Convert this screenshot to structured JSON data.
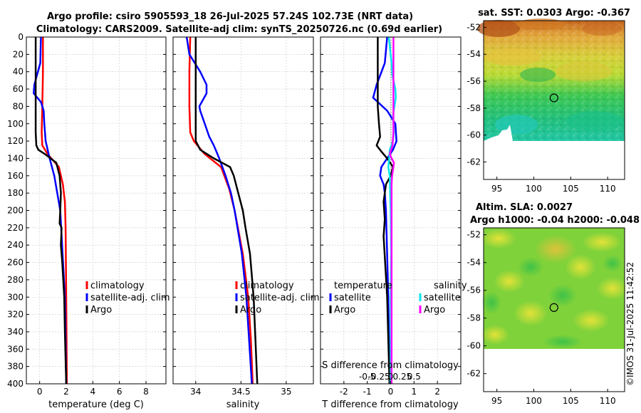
{
  "title_line1": "Argo profile: csiro 5905593_18 26-Jul-2025 57.24S 102.73E (NRT data)",
  "title_line2": "Climatology: CARS2009. Satellite-adj clim: synTS_20250726.nc (0.69d earlier)",
  "watermark": "©IMOS 31-Jul-2025 11:42:52",
  "colors": {
    "climatology": "#ff0000",
    "satellite": "#0000ff",
    "argo": "#000000",
    "sat_salinity": "#00e5ee",
    "argo_salinity": "#ff00ff"
  },
  "chart_data": [
    {
      "id": "temperature",
      "type": "line",
      "xlabel": "temperature (deg C)",
      "ylabel": "",
      "xlim": [
        -1,
        9.5
      ],
      "ylim": [
        400,
        0
      ],
      "x_ticks": [
        0,
        2,
        4,
        6,
        8
      ],
      "x_tick_labels": [
        "0",
        "2",
        "4",
        "6",
        "8"
      ],
      "y_ticks": [
        0,
        20,
        40,
        60,
        80,
        100,
        120,
        140,
        160,
        180,
        200,
        220,
        240,
        260,
        280,
        300,
        320,
        340,
        360,
        380,
        400
      ],
      "y_tick_labels": [
        "0",
        "20",
        "40",
        "60",
        "80",
        "100",
        "120",
        "140",
        "160",
        "180",
        "200",
        "220",
        "240",
        "260",
        "280",
        "300",
        "320",
        "340",
        "360",
        "380",
        "400"
      ],
      "legend": [
        "climatology",
        "satellite-adj. clim",
        "Argo"
      ],
      "legend_location": "lower-right",
      "series": [
        {
          "name": "climatology",
          "color": "#ff0000",
          "depth": [
            0,
            40,
            80,
            110,
            125,
            135,
            150,
            170,
            190,
            220,
            300,
            400
          ],
          "values": [
            0.25,
            0.25,
            0.2,
            0.15,
            0.2,
            0.6,
            1.45,
            1.75,
            1.9,
            1.95,
            2.0,
            2.05
          ]
        },
        {
          "name": "satellite-adj. clim",
          "color": "#0000ff",
          "depth": [
            0,
            30,
            55,
            65,
            75,
            85,
            100,
            120,
            140,
            160,
            200,
            300,
            400
          ],
          "values": [
            0.1,
            0.05,
            -0.4,
            -0.45,
            0.1,
            0.3,
            0.35,
            0.45,
            0.75,
            1.1,
            1.55,
            1.9,
            2.0
          ]
        },
        {
          "name": "Argo",
          "color": "#000000",
          "depth": [
            0,
            40,
            80,
            110,
            125,
            130,
            135,
            145,
            160,
            180,
            200,
            215,
            220,
            240,
            260,
            300,
            340,
            400
          ],
          "values": [
            -0.3,
            -0.3,
            -0.3,
            -0.3,
            -0.25,
            -0.1,
            0.4,
            1.25,
            1.5,
            1.6,
            1.55,
            1.5,
            1.65,
            1.6,
            1.7,
            1.85,
            1.9,
            2.0
          ]
        }
      ]
    },
    {
      "id": "salinity",
      "type": "line",
      "xlabel": "salinity",
      "ylabel": "",
      "xlim": [
        33.75,
        35.3
      ],
      "ylim": [
        400,
        0
      ],
      "x_ticks": [
        34,
        34.5,
        35
      ],
      "x_tick_labels": [
        "34",
        "34.5",
        "35"
      ],
      "legend": [
        "climatology",
        "satellite-adj. clim",
        "Argo"
      ],
      "legend_location": "lower-right",
      "series": [
        {
          "name": "climatology",
          "color": "#ff0000",
          "depth": [
            0,
            40,
            80,
            110,
            120,
            135,
            150,
            175,
            200,
            250,
            300,
            350,
            400
          ],
          "values": [
            33.94,
            33.93,
            33.93,
            33.94,
            33.98,
            34.1,
            34.28,
            34.37,
            34.43,
            34.52,
            34.58,
            34.61,
            34.63
          ]
        },
        {
          "name": "satellite-adj. clim",
          "color": "#0000ff",
          "depth": [
            0,
            20,
            40,
            55,
            65,
            80,
            85,
            100,
            115,
            125,
            140,
            160,
            180,
            200,
            250,
            300,
            350,
            400
          ],
          "values": [
            33.9,
            33.93,
            34.05,
            34.12,
            34.12,
            34.04,
            34.05,
            34.1,
            34.15,
            34.2,
            34.26,
            34.33,
            34.39,
            34.43,
            34.51,
            34.56,
            34.59,
            34.62
          ]
        },
        {
          "name": "Argo",
          "color": "#000000",
          "depth": [
            0,
            80,
            110,
            120,
            130,
            140,
            150,
            160,
            180,
            200,
            220,
            250,
            300,
            350,
            400
          ],
          "values": [
            34.0,
            34.0,
            34.0,
            34.0,
            34.05,
            34.2,
            34.38,
            34.42,
            34.47,
            34.52,
            34.55,
            34.6,
            34.64,
            34.66,
            34.68
          ]
        }
      ]
    },
    {
      "id": "difference",
      "type": "line",
      "xlabel": "T difference from climatology",
      "xlabel_top": "S difference from climatology",
      "xlim": [
        -3,
        3
      ],
      "ylim": [
        400,
        0
      ],
      "x_ticks": [
        -2,
        -1,
        0,
        1,
        2
      ],
      "x_tick_labels": [
        "-2",
        "-1",
        "0",
        "1",
        "2"
      ],
      "s_ticks": [
        -0.5,
        -0.25,
        0,
        0.25,
        0.5
      ],
      "s_tick_labels": [
        "-0.5",
        "-0.25",
        "0",
        "0.25",
        "0.5"
      ],
      "s_scale": 2,
      "legend_temperature_title": "temperature",
      "legend_salinity_title": "salinity",
      "legend_temperature": [
        "satellite",
        "Argo"
      ],
      "legend_salinity": [
        "satellite",
        "Argo"
      ],
      "series": [
        {
          "name": "temperature satellite",
          "color": "#0000ff",
          "depth": [
            0,
            30,
            55,
            70,
            85,
            100,
            120,
            130,
            140,
            150,
            160,
            170,
            180,
            200,
            300,
            400
          ],
          "values": [
            -0.15,
            -0.25,
            -0.6,
            -0.75,
            -0.15,
            0.2,
            0.25,
            0.1,
            -0.15,
            -0.4,
            -0.45,
            -0.3,
            -0.25,
            -0.2,
            -0.1,
            -0.05
          ]
        },
        {
          "name": "temperature Argo",
          "color": "#000000",
          "depth": [
            0,
            40,
            80,
            100,
            115,
            125,
            132,
            140,
            150,
            160,
            170,
            190,
            210,
            230,
            300,
            400
          ],
          "values": [
            -0.55,
            -0.55,
            -0.55,
            -0.5,
            -0.45,
            -0.6,
            -0.4,
            -0.15,
            0.1,
            0.0,
            -0.2,
            -0.3,
            -0.25,
            -0.3,
            -0.15,
            -0.05
          ]
        },
        {
          "name": "salinity satellite",
          "color": "#00e5ee",
          "depth": [
            0,
            15,
            30,
            45,
            60,
            70,
            80,
            90,
            100,
            110,
            120,
            130,
            140,
            150,
            160,
            180,
            200,
            250,
            300,
            400
          ],
          "values": [
            -0.04,
            -0.01,
            0.02,
            0.04,
            0.1,
            0.11,
            0.08,
            0.05,
            0.06,
            0.07,
            0.05,
            -0.02,
            -0.03,
            -0.05,
            -0.02,
            -0.01,
            0.0,
            0.01,
            0.0,
            0.0
          ]
        },
        {
          "name": "salinity Argo",
          "color": "#ff00ff",
          "depth": [
            0,
            40,
            80,
            110,
            125,
            135,
            140,
            145,
            150,
            160,
            170,
            200,
            300,
            400
          ],
          "values": [
            0.06,
            0.06,
            0.06,
            0.06,
            0.04,
            -0.02,
            0.02,
            0.07,
            0.06,
            0.03,
            0.02,
            0.02,
            0.02,
            0.02
          ]
        }
      ]
    },
    {
      "id": "sst-map",
      "type": "heatmap",
      "title": "sat. SST: 0.0303 Argo: -0.367",
      "x_ticks": [
        95,
        100,
        105,
        110
      ],
      "x_tick_labels": [
        "95",
        "100",
        "105",
        "110"
      ],
      "y_ticks": [
        -52,
        -54,
        -56,
        -58,
        -60,
        -62
      ],
      "y_tick_labels": [
        "-52",
        "-54",
        "-56",
        "-58",
        "-60",
        "-62"
      ],
      "xlim": [
        93.2,
        112.3
      ],
      "ylim": [
        -63.3,
        -51.5
      ],
      "data_south_limit": -60,
      "argo_position": [
        102.73,
        -57.24
      ]
    },
    {
      "id": "sla-map",
      "type": "heatmap",
      "title_line1": "Altim. SLA: 0.0027",
      "title_line2": "Argo h1000: -0.04 h2000: -0.048",
      "x_ticks": [
        95,
        100,
        105,
        110
      ],
      "x_tick_labels": [
        "95",
        "100",
        "105",
        "110"
      ],
      "y_ticks": [
        -52,
        -54,
        -56,
        -58,
        -60,
        -62
      ],
      "y_tick_labels": [
        "-52",
        "-54",
        "-56",
        "-58",
        "-60",
        "-62"
      ],
      "xlim": [
        93.2,
        112.3
      ],
      "ylim": [
        -63.3,
        -51.5
      ],
      "data_south_limit": -60,
      "argo_position": [
        102.73,
        -57.24
      ]
    }
  ]
}
